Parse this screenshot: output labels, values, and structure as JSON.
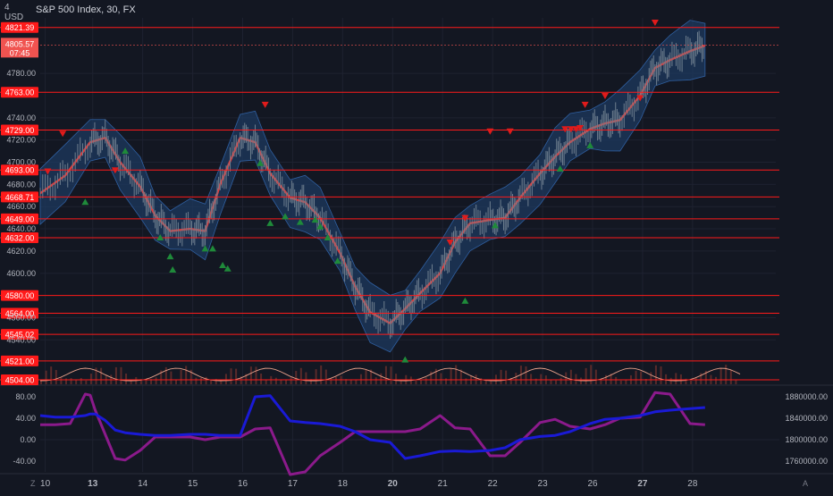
{
  "header": {
    "currency_top": "4",
    "currency": "USD",
    "symbol_title": "S&P 500 Index, 30, FX"
  },
  "colors": {
    "background": "#131722",
    "hline": "#ff1a1a",
    "band_fill": "#1e3a5f",
    "ma_line": "#e03b3b",
    "candle": "#6f7f8f",
    "sell_marker": "#e01b1b",
    "buy_marker": "#1f8a3a",
    "osc_purple": "#8b1a8b",
    "osc_blue": "#1a1ad6",
    "volume_bar": "#5a2a2a",
    "volume_line": "#e8a08a",
    "grid": "#1e2230",
    "current_price_bg": "#f05350"
  },
  "chart_data": [
    {
      "type": "line",
      "title": "S&P 500 Index, 30, FX",
      "ylim": [
        4500,
        4830
      ],
      "y_ticks": [
        "4780.00",
        "4740.00",
        "4720.00",
        "4700.00",
        "4680.00",
        "4660.00",
        "4640.00",
        "4620.00",
        "4600.00",
        "4560.00",
        "4540.00"
      ],
      "y_tick_values": [
        4780,
        4740,
        4720,
        4700,
        4680,
        4660,
        4640,
        4620,
        4600,
        4560,
        4540
      ],
      "x_ticks": [
        "10",
        "13",
        "14",
        "15",
        "16",
        "17",
        "18",
        "20",
        "21",
        "22",
        "23",
        "26",
        "27",
        "28"
      ],
      "x_tick_bold": [
        false,
        true,
        false,
        false,
        false,
        false,
        false,
        true,
        false,
        false,
        false,
        false,
        true,
        false
      ],
      "x_tick_index": [
        0.1,
        1.05,
        2.05,
        3.05,
        4.05,
        5.05,
        6.05,
        7.05,
        8.05,
        9.05,
        10.05,
        11.05,
        12.05,
        13.05
      ],
      "x_range": [
        0,
        14
      ],
      "horizontal_levels": [
        {
          "label": "4821.39",
          "value": 4821.39
        },
        {
          "label": "4763.00",
          "value": 4763.0
        },
        {
          "label": "4729.00",
          "value": 4729.0
        },
        {
          "label": "4693.00",
          "value": 4693.0
        },
        {
          "label": "4668.71",
          "value": 4668.71
        },
        {
          "label": "4649.00",
          "value": 4649.0
        },
        {
          "label": "4632.00",
          "value": 4632.0
        },
        {
          "label": "4580.00",
          "value": 4580.0
        },
        {
          "label": "4564.00",
          "value": 4564.0
        },
        {
          "label": "4545.02",
          "value": 4545.02
        },
        {
          "label": "4521.00",
          "value": 4521.0
        },
        {
          "label": "4504.00",
          "value": 4504.0
        }
      ],
      "current_price": {
        "label": "4805.57",
        "countdown": "07:45",
        "value": 4805.57
      },
      "series": [
        {
          "name": "",
          "x": [
            0,
            0.5,
            1.0,
            1.3,
            1.6,
            2.0,
            2.3,
            2.6,
            3.0,
            3.3,
            3.6,
            4.0,
            4.3,
            4.6,
            5.0,
            5.3,
            5.6,
            6.0,
            6.3,
            6.6,
            7.0,
            7.3,
            7.6,
            8.0,
            8.3,
            8.6,
            9.0,
            9.3,
            9.6,
            10.0,
            10.3,
            10.6,
            11.0,
            11.3,
            11.6,
            12.0,
            12.3,
            12.6,
            13.0,
            13.3
          ],
          "values": [
            4672,
            4688,
            4718,
            4722,
            4700,
            4678,
            4652,
            4638,
            4640,
            4638,
            4680,
            4722,
            4718,
            4690,
            4668,
            4664,
            4650,
            4618,
            4588,
            4565,
            4555,
            4568,
            4582,
            4600,
            4628,
            4645,
            4648,
            4650,
            4668,
            4690,
            4705,
            4718,
            4730,
            4735,
            4738,
            4760,
            4785,
            4792,
            4800,
            4805
          ]
        }
      ],
      "buy_markers": [
        {
          "x": 1.7,
          "y": 4710
        },
        {
          "x": 0.9,
          "y": 4664
        },
        {
          "x": 2.4,
          "y": 4632
        },
        {
          "x": 2.6,
          "y": 4615
        },
        {
          "x": 2.65,
          "y": 4603
        },
        {
          "x": 3.3,
          "y": 4622
        },
        {
          "x": 3.45,
          "y": 4622
        },
        {
          "x": 3.65,
          "y": 4607
        },
        {
          "x": 3.75,
          "y": 4604
        },
        {
          "x": 4.4,
          "y": 4699
        },
        {
          "x": 4.6,
          "y": 4645
        },
        {
          "x": 4.9,
          "y": 4651
        },
        {
          "x": 5.2,
          "y": 4646
        },
        {
          "x": 5.5,
          "y": 4648
        },
        {
          "x": 5.6,
          "y": 4642
        },
        {
          "x": 5.75,
          "y": 4632
        },
        {
          "x": 5.95,
          "y": 4611
        },
        {
          "x": 7.3,
          "y": 4522
        },
        {
          "x": 8.5,
          "y": 4575
        },
        {
          "x": 9.1,
          "y": 4643
        },
        {
          "x": 10.4,
          "y": 4694
        },
        {
          "x": 11.0,
          "y": 4715
        }
      ],
      "sell_markers": [
        {
          "x": 0.15,
          "y": 4692
        },
        {
          "x": 0.45,
          "y": 4726
        },
        {
          "x": 1.5,
          "y": 4693
        },
        {
          "x": 4.5,
          "y": 4752
        },
        {
          "x": 8.2,
          "y": 4628
        },
        {
          "x": 8.5,
          "y": 4650
        },
        {
          "x": 9.0,
          "y": 4728
        },
        {
          "x": 9.4,
          "y": 4728
        },
        {
          "x": 10.5,
          "y": 4730
        },
        {
          "x": 10.62,
          "y": 4730
        },
        {
          "x": 10.72,
          "y": 4730
        },
        {
          "x": 10.8,
          "y": 4731
        },
        {
          "x": 10.9,
          "y": 4752
        },
        {
          "x": 11.3,
          "y": 4760
        },
        {
          "x": 12.0,
          "y": 4758
        },
        {
          "x": 12.3,
          "y": 4826
        }
      ]
    },
    {
      "type": "line",
      "ylim": [
        -60,
        100
      ],
      "y_ticks": [
        "80.00",
        "40.00",
        "0.00",
        "-40.00"
      ],
      "y_tick_values": [
        80,
        40,
        0,
        -40
      ],
      "right_ylim": [
        1740000,
        1900000
      ],
      "right_ticks": [
        "1880000.00",
        "1840000.00",
        "1800000.00",
        "1760000.00"
      ],
      "right_tick_values": [
        1880000,
        1840000,
        1800000,
        1760000
      ],
      "series": [
        {
          "name": "",
          "x": [
            0,
            0.3,
            0.6,
            0.9,
            1.0,
            1.1,
            1.3,
            1.5,
            1.7,
            2.0,
            2.3,
            2.6,
            3.0,
            3.3,
            3.6,
            4.0,
            4.3,
            4.6,
            5.0,
            5.3,
            5.6,
            6.0,
            6.3,
            6.6,
            7.0,
            7.3,
            7.6,
            8.0,
            8.3,
            8.6,
            9.0,
            9.3,
            9.6,
            10.0,
            10.3,
            10.6,
            11.0,
            11.3,
            11.6,
            12.0,
            12.3,
            12.6,
            13.0,
            13.3
          ],
          "values": [
            28,
            28,
            30,
            85,
            83,
            55,
            10,
            -35,
            -38,
            -20,
            5,
            5,
            5,
            0,
            5,
            5,
            20,
            22,
            -65,
            -60,
            -30,
            -5,
            15,
            15,
            15,
            15,
            20,
            45,
            22,
            20,
            -30,
            -30,
            -5,
            32,
            38,
            25,
            20,
            28,
            40,
            42,
            88,
            85,
            30,
            28
          ]
        },
        {
          "name": "",
          "x": [
            0,
            0.3,
            0.6,
            0.9,
            1.0,
            1.1,
            1.3,
            1.5,
            1.7,
            2.0,
            2.3,
            2.6,
            3.0,
            3.3,
            3.6,
            4.0,
            4.3,
            4.6,
            5.0,
            5.3,
            5.6,
            6.0,
            6.3,
            6.6,
            7.0,
            7.3,
            7.6,
            8.0,
            8.3,
            8.6,
            9.0,
            9.3,
            9.6,
            10.0,
            10.3,
            10.6,
            11.0,
            11.3,
            11.6,
            12.0,
            12.3,
            12.6,
            13.0,
            13.3
          ],
          "values": [
            1845000,
            1842000,
            1842000,
            1845000,
            1848000,
            1848000,
            1836000,
            1818000,
            1813000,
            1810000,
            1808000,
            1808000,
            1810000,
            1810000,
            1808000,
            1808000,
            1880000,
            1882000,
            1835000,
            1832000,
            1830000,
            1825000,
            1815000,
            1800000,
            1795000,
            1765000,
            1770000,
            1778000,
            1779000,
            1778000,
            1780000,
            1785000,
            1800000,
            1806000,
            1808000,
            1815000,
            1830000,
            1838000,
            1840000,
            1845000,
            1852000,
            1855000,
            1858000,
            1860000
          ]
        }
      ]
    }
  ],
  "footer": {
    "left_icon": "Z",
    "right_icon": "A"
  }
}
